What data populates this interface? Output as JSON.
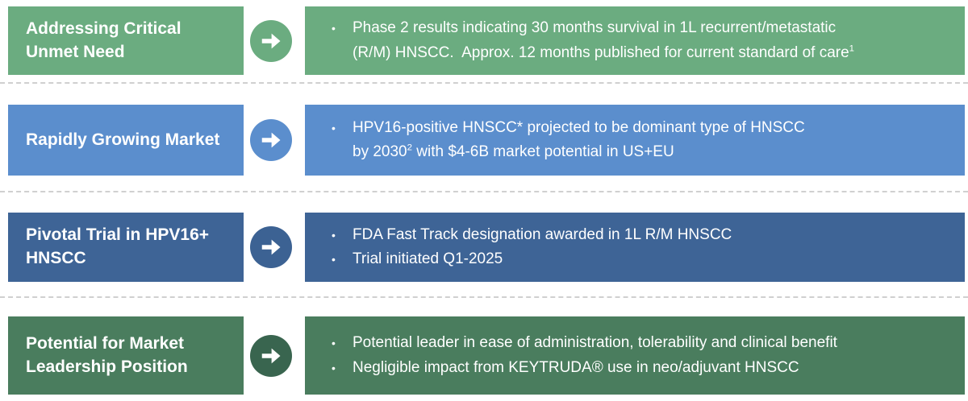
{
  "page": {
    "background_color": "#ffffff",
    "text_color": "#ffffff",
    "separator_color": "#d0d0d0",
    "bullet_glyph": "•"
  },
  "rows": [
    {
      "name": "addressing-critical-unmet-need",
      "label_lines": [
        "Addressing Critical",
        "Unmet Need"
      ],
      "colors": {
        "label": "#6bac80",
        "arrow": "#6bac80",
        "content": "#6bac80"
      },
      "bullets": [
        {
          "lines": [
            [
              {
                "text": "Phase 2 results indicating 30 months survival in 1L recurrent/metastatic"
              }
            ],
            [
              {
                "text": "(R/M) HNSCC.  Approx. 12 months published for current standard of care"
              },
              {
                "sup": "1"
              }
            ]
          ]
        }
      ]
    },
    {
      "name": "rapidly-growing-market",
      "label_lines": [
        "Rapidly Growing Market"
      ],
      "colors": {
        "label": "#5b8ecd",
        "arrow": "#5b8ecd",
        "content": "#5b8ecd"
      },
      "bullets": [
        {
          "lines": [
            [
              {
                "text": "HPV16-positive HNSCC* projected to be dominant type of HNSCC"
              }
            ],
            [
              {
                "text": "by 2030"
              },
              {
                "sup": "2"
              },
              {
                "text": " with $4-6B market potential in US+EU"
              }
            ]
          ]
        }
      ]
    },
    {
      "name": "pivotal-trial-in-hpv16-hnscc",
      "label_lines": [
        "Pivotal Trial in HPV16+",
        "HNSCC"
      ],
      "colors": {
        "label": "#3e6496",
        "arrow": "#3c6293",
        "content": "#3e6496"
      },
      "bullets": [
        {
          "lines": [
            [
              {
                "text": "FDA Fast Track designation awarded in 1L R/M HNSCC"
              }
            ]
          ]
        },
        {
          "lines": [
            [
              {
                "text": "Trial initiated Q1-2025"
              }
            ]
          ]
        }
      ]
    },
    {
      "name": "potential-for-market-leadership-position",
      "label_lines": [
        "Potential for Market",
        "Leadership Position"
      ],
      "colors": {
        "label": "#4a7d5e",
        "arrow": "#39654f",
        "content": "#4a7d5e"
      },
      "bullets": [
        {
          "lines": [
            [
              {
                "text": "Potential leader in ease of administration, tolerability and clinical benefit"
              }
            ]
          ]
        },
        {
          "lines": [
            [
              {
                "text": "Negligible impact from KEYTRUDA® use in neo/adjuvant HNSCC"
              }
            ]
          ]
        }
      ]
    }
  ]
}
